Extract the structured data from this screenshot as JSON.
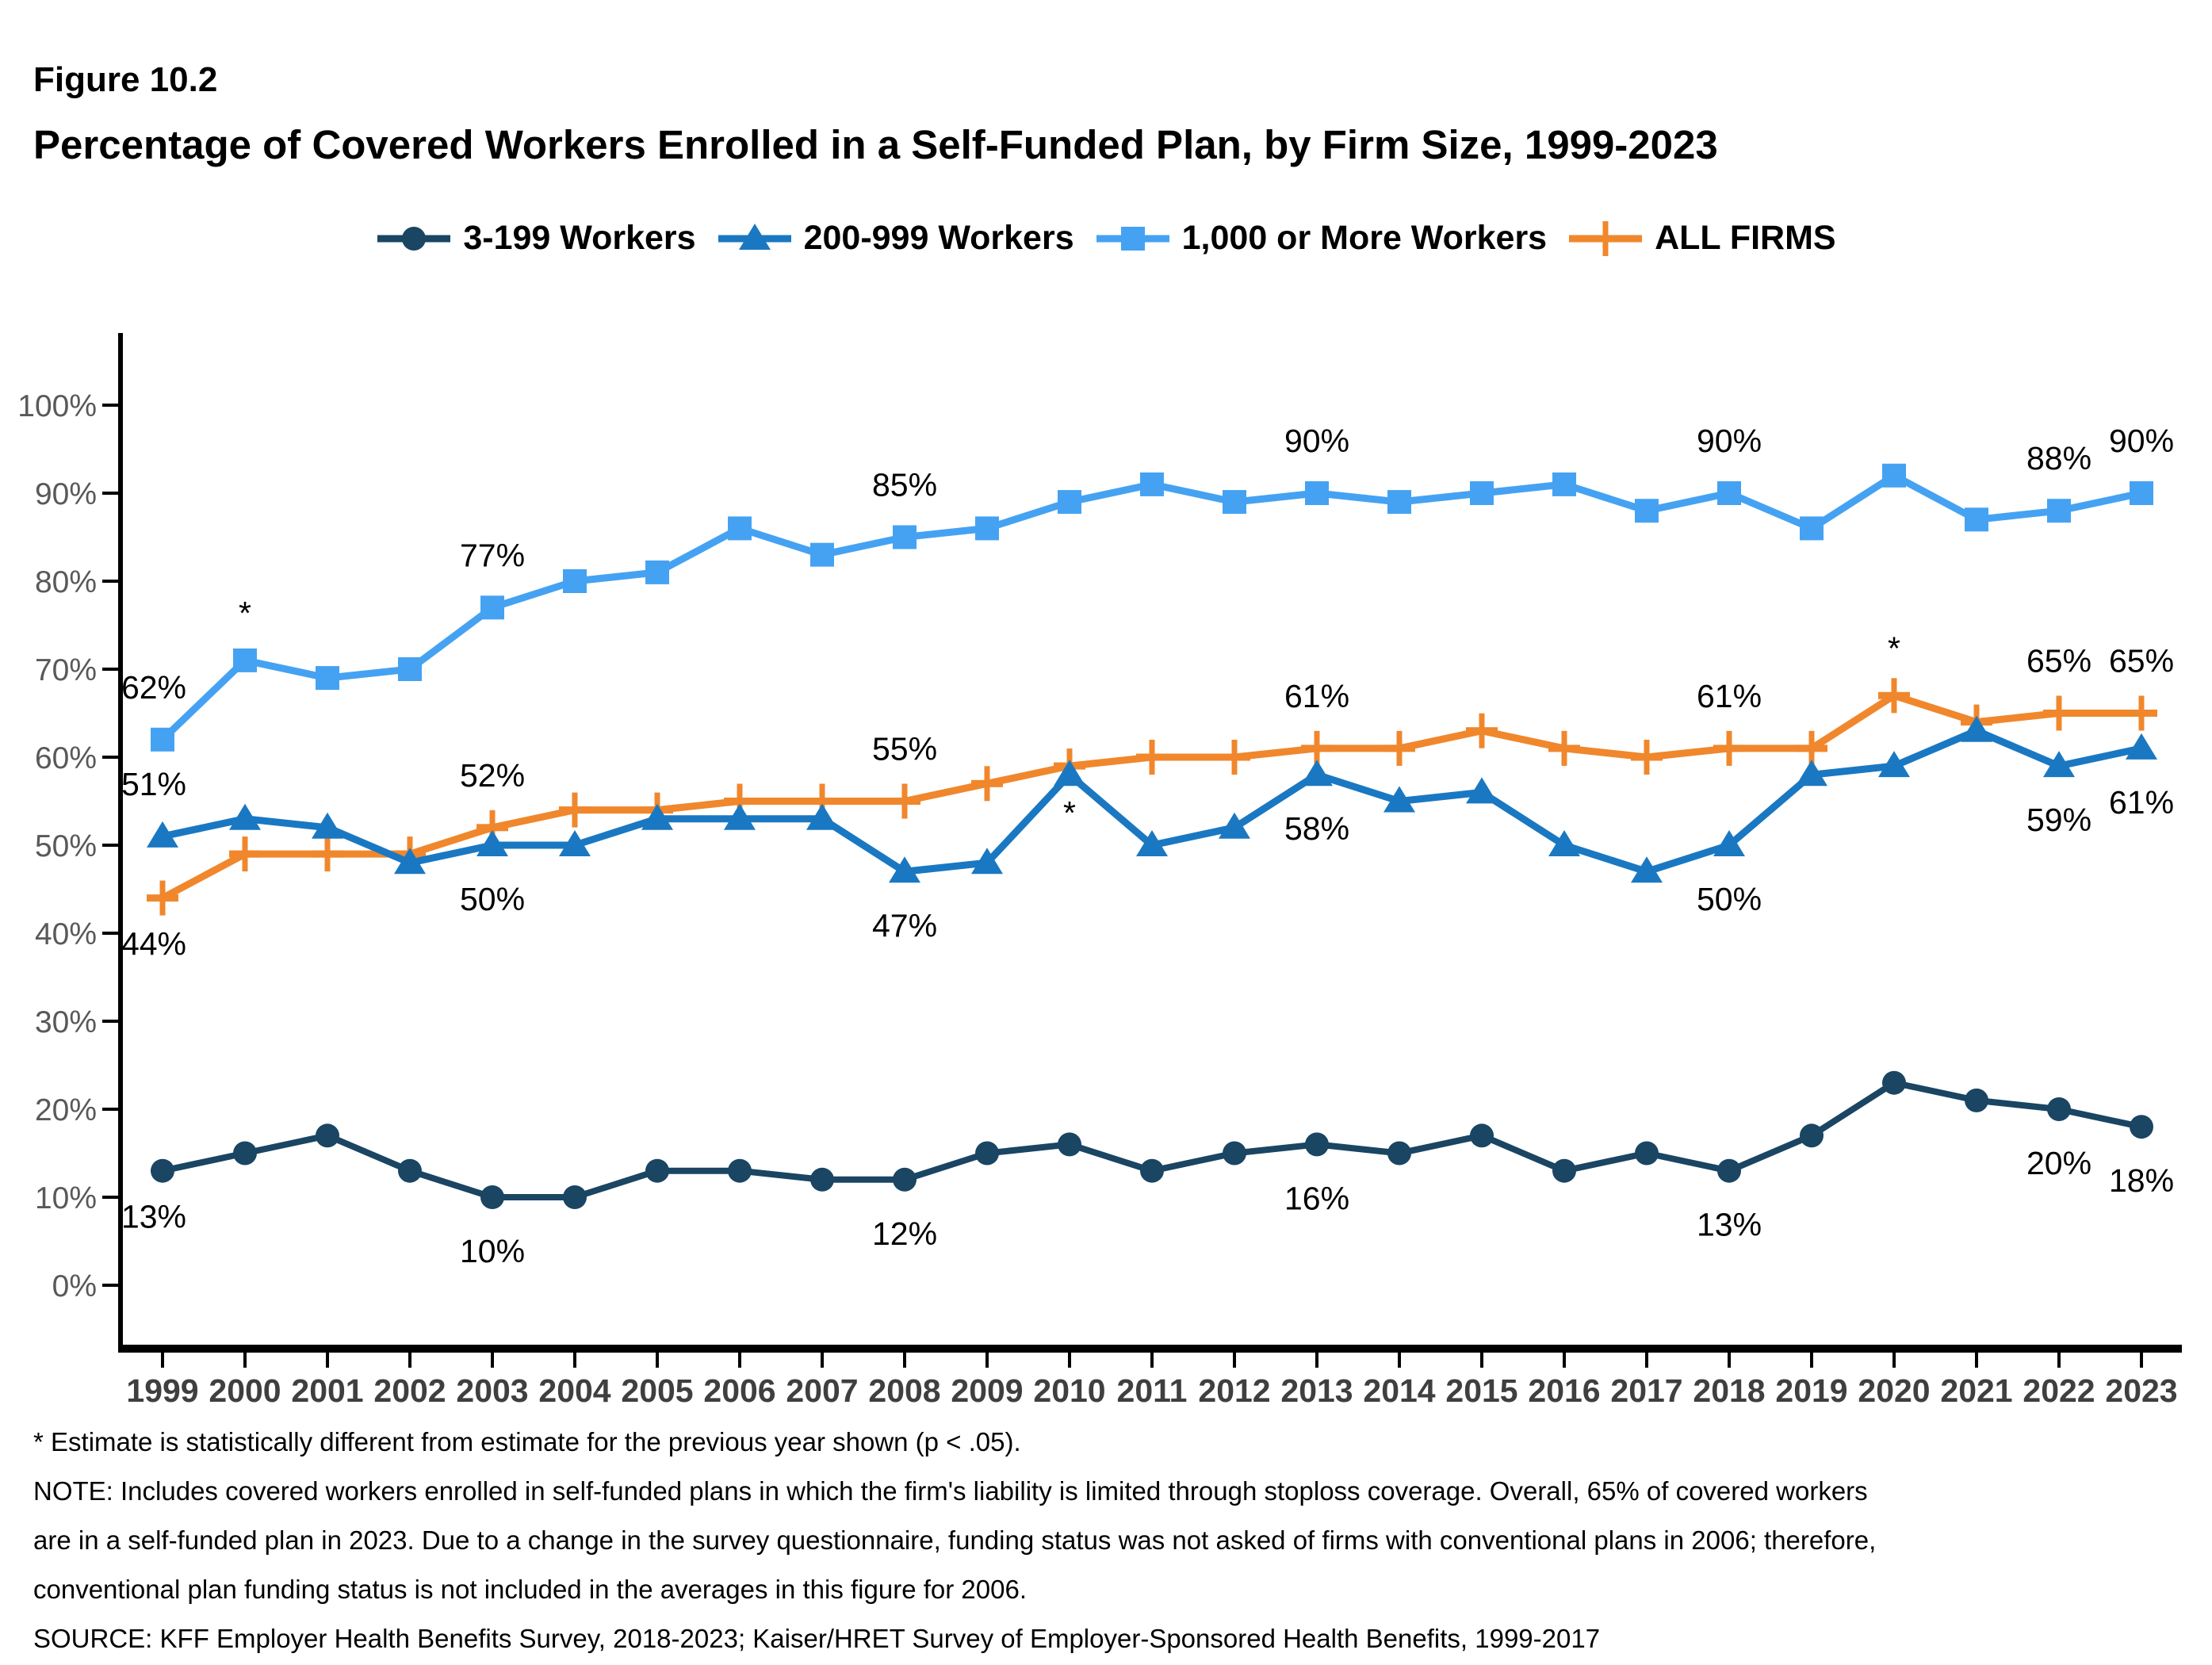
{
  "figure": {
    "label": "Figure 10.2",
    "title": "Percentage of Covered Workers Enrolled in a Self-Funded Plan, by Firm Size, 1999-2023"
  },
  "chart_data": {
    "type": "line",
    "title": "Percentage of Covered Workers Enrolled in a Self-Funded Plan, by Firm Size, 1999-2023",
    "x": [
      1999,
      2000,
      2001,
      2002,
      2003,
      2004,
      2005,
      2006,
      2007,
      2008,
      2009,
      2010,
      2011,
      2012,
      2013,
      2014,
      2015,
      2016,
      2017,
      2018,
      2019,
      2020,
      2021,
      2022,
      2023
    ],
    "ylim": [
      0,
      100
    ],
    "y_ticks": [
      "0%",
      "10%",
      "20%",
      "30%",
      "40%",
      "50%",
      "60%",
      "70%",
      "80%",
      "90%",
      "100%"
    ],
    "grid": false,
    "legend_position": "top",
    "axis_colors": {
      "y_tick_label": "#595959",
      "x_tick_label": "#3f3f3f",
      "axis_line": "#000000"
    },
    "series": [
      {
        "name": "3-199 Workers",
        "color": "#1a4563",
        "marker": "circle",
        "values": [
          13,
          15,
          17,
          13,
          10,
          10,
          13,
          13,
          12,
          12,
          15,
          16,
          13,
          15,
          16,
          15,
          17,
          13,
          15,
          13,
          17,
          23,
          21,
          20,
          18
        ]
      },
      {
        "name": "200-999 Workers",
        "color": "#1a78c2",
        "marker": "triangle",
        "values": [
          51,
          53,
          52,
          48,
          50,
          50,
          53,
          53,
          53,
          47,
          48,
          58,
          50,
          52,
          58,
          55,
          56,
          50,
          47,
          50,
          58,
          59,
          63,
          59,
          61
        ]
      },
      {
        "name": "1,000 or More Workers",
        "color": "#45a2f2",
        "marker": "square",
        "values": [
          62,
          71,
          69,
          70,
          77,
          80,
          81,
          86,
          83,
          85,
          86,
          89,
          91,
          89,
          90,
          89,
          90,
          91,
          88,
          90,
          86,
          92,
          87,
          88,
          90
        ]
      },
      {
        "name": "ALL FIRMS",
        "color": "#f0872c",
        "marker": "plus",
        "values": [
          44,
          49,
          49,
          49,
          52,
          54,
          54,
          55,
          55,
          55,
          57,
          59,
          60,
          60,
          61,
          61,
          63,
          61,
          60,
          61,
          61,
          67,
          64,
          65,
          65
        ]
      }
    ],
    "draw_order": [
      2,
      3,
      1,
      0
    ],
    "annotations": [
      {
        "series": 2,
        "year": 1999,
        "text": "62%",
        "pos": "left-above"
      },
      {
        "series": 1,
        "year": 1999,
        "text": "51%",
        "pos": "left-above"
      },
      {
        "series": 3,
        "year": 1999,
        "text": "44%",
        "pos": "left-below"
      },
      {
        "series": 0,
        "year": 1999,
        "text": "13%",
        "pos": "left-below"
      },
      {
        "series": 2,
        "year": 2000,
        "text": "*",
        "pos": "star-above"
      },
      {
        "series": 2,
        "year": 2003,
        "text": "77%",
        "pos": "above"
      },
      {
        "series": 3,
        "year": 2003,
        "text": "52%",
        "pos": "above"
      },
      {
        "series": 1,
        "year": 2003,
        "text": "50%",
        "pos": "below"
      },
      {
        "series": 0,
        "year": 2003,
        "text": "10%",
        "pos": "below"
      },
      {
        "series": 2,
        "year": 2008,
        "text": "85%",
        "pos": "above"
      },
      {
        "series": 3,
        "year": 2008,
        "text": "55%",
        "pos": "above"
      },
      {
        "series": 1,
        "year": 2008,
        "text": "47%",
        "pos": "below"
      },
      {
        "series": 0,
        "year": 2008,
        "text": "12%",
        "pos": "below"
      },
      {
        "series": 1,
        "year": 2010,
        "text": "*",
        "pos": "star-below"
      },
      {
        "series": 2,
        "year": 2013,
        "text": "90%",
        "pos": "above"
      },
      {
        "series": 3,
        "year": 2013,
        "text": "61%",
        "pos": "above"
      },
      {
        "series": 1,
        "year": 2013,
        "text": "58%",
        "pos": "below"
      },
      {
        "series": 0,
        "year": 2013,
        "text": "16%",
        "pos": "below"
      },
      {
        "series": 2,
        "year": 2018,
        "text": "90%",
        "pos": "above"
      },
      {
        "series": 3,
        "year": 2018,
        "text": "61%",
        "pos": "above"
      },
      {
        "series": 1,
        "year": 2018,
        "text": "50%",
        "pos": "below"
      },
      {
        "series": 0,
        "year": 2018,
        "text": "13%",
        "pos": "below"
      },
      {
        "series": 3,
        "year": 2020,
        "text": "*",
        "pos": "star-above"
      },
      {
        "series": 2,
        "year": 2022,
        "text": "88%",
        "pos": "above"
      },
      {
        "series": 2,
        "year": 2023,
        "text": "90%",
        "pos": "above"
      },
      {
        "series": 3,
        "year": 2022,
        "text": "65%",
        "pos": "above"
      },
      {
        "series": 3,
        "year": 2023,
        "text": "65%",
        "pos": "above"
      },
      {
        "series": 1,
        "year": 2022,
        "text": "59%",
        "pos": "below"
      },
      {
        "series": 1,
        "year": 2023,
        "text": "61%",
        "pos": "below"
      },
      {
        "series": 0,
        "year": 2022,
        "text": "20%",
        "pos": "below"
      },
      {
        "series": 0,
        "year": 2023,
        "text": "18%",
        "pos": "below"
      }
    ]
  },
  "footnotes": {
    "significance": "* Estimate is statistically different from estimate for the previous year shown (p < .05).",
    "note": "NOTE: Includes covered workers enrolled in self-funded plans in which the firm's liability is limited through stoploss coverage. Overall, 65% of covered workers are in a self-funded plan in 2023. Due to a change in the survey questionnaire, funding status was not asked of firms with conventional plans in 2006; therefore, conventional plan funding status is not included in the averages in this figure for 2006.",
    "source": "SOURCE: KFF Employer Health Benefits Survey, 2018-2023; Kaiser/HRET Survey of Employer-Sponsored Health Benefits, 1999-2017"
  }
}
